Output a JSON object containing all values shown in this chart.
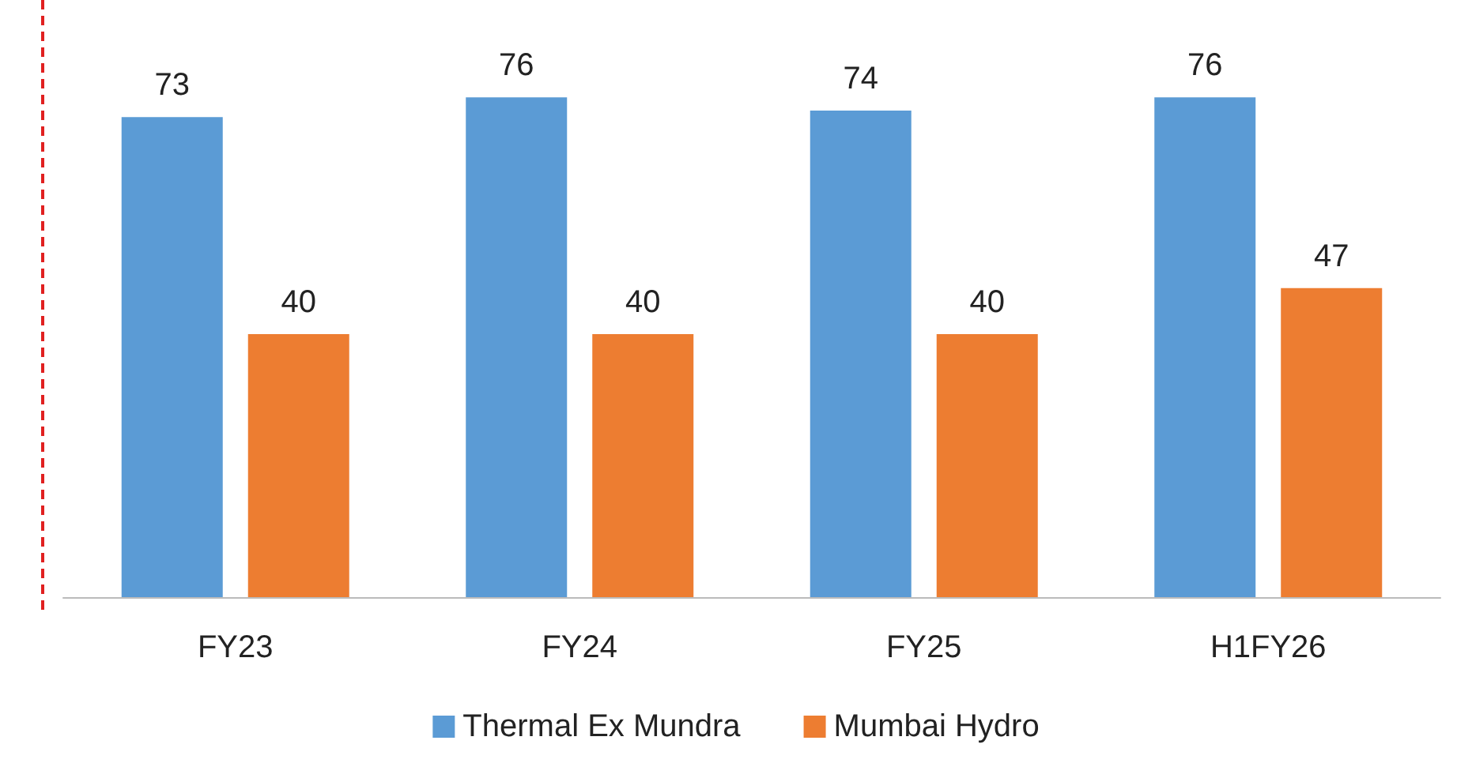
{
  "chart_data": {
    "type": "bar",
    "categories": [
      "FY23",
      "FY24",
      "FY25",
      "H1FY26"
    ],
    "series": [
      {
        "name": "Thermal Ex Mundra",
        "color": "#5b9bd5",
        "values": [
          73,
          76,
          74,
          76
        ]
      },
      {
        "name": "Mumbai Hydro",
        "color": "#ed7d31",
        "values": [
          40,
          40,
          40,
          47
        ]
      }
    ],
    "data_labels": true,
    "legend": "bottom"
  }
}
